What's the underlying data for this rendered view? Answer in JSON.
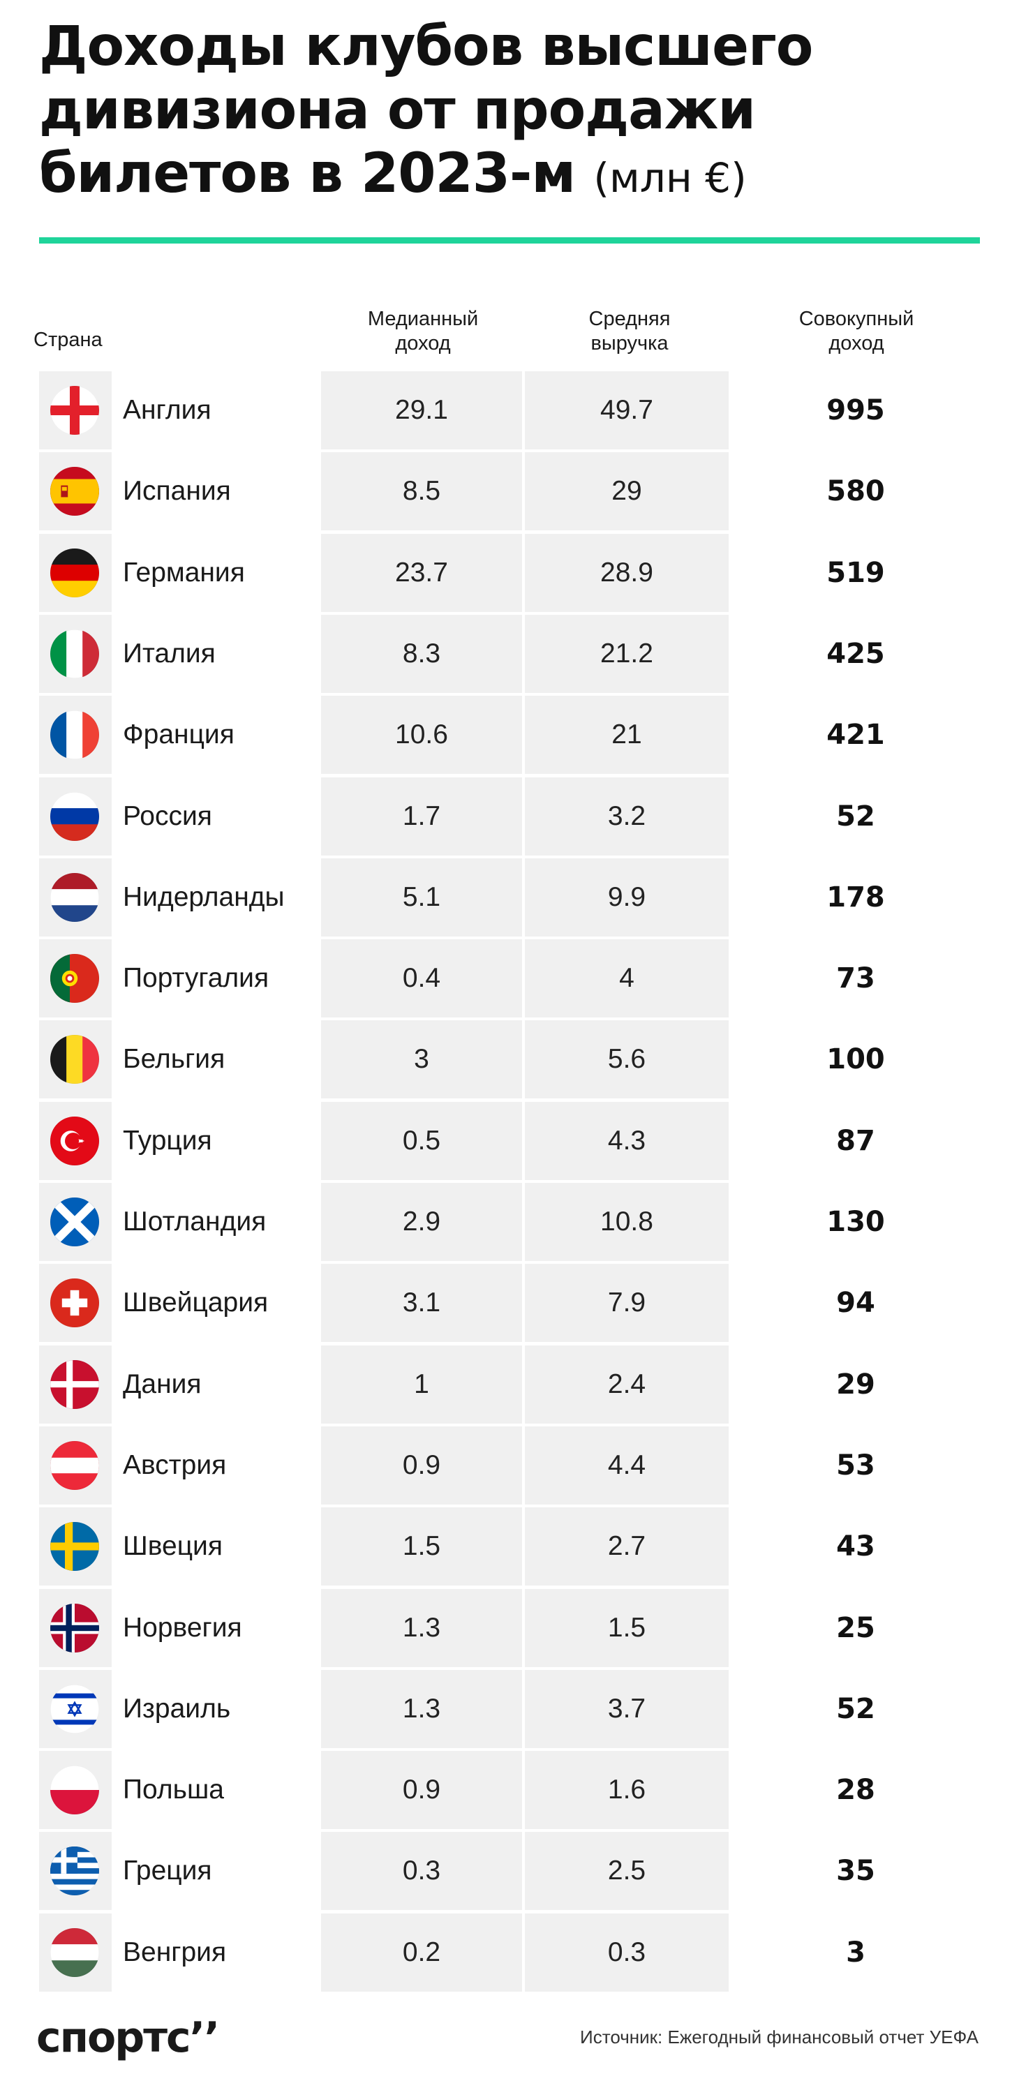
{
  "title": {
    "main": "Доходы клубов высшего дивизиона от продажи билетов в 2023-м",
    "unit": "(млн €)"
  },
  "colors": {
    "accent": "#1fd49a",
    "row_shade": "#f0f0f0",
    "logo_dark": "#1a1a1a"
  },
  "chart_data": {
    "type": "table",
    "title": "Доходы клубов высшего дивизиона от продажи билетов в 2023-м (млн €)",
    "columns": [
      "Страна",
      "Медианный\nдоход",
      "Средняя\nвыручка",
      "Совокупный\nдоход"
    ],
    "rows": [
      {
        "country": "Англия",
        "flag": "england-flag",
        "median": "29.1",
        "average": "49.7",
        "total": "995"
      },
      {
        "country": "Испания",
        "flag": "spain-flag",
        "median": "8.5",
        "average": "29",
        "total": "580"
      },
      {
        "country": "Германия",
        "flag": "germany-flag",
        "median": "23.7",
        "average": "28.9",
        "total": "519"
      },
      {
        "country": "Италия",
        "flag": "italy-flag",
        "median": "8.3",
        "average": "21.2",
        "total": "425"
      },
      {
        "country": "Франция",
        "flag": "france-flag",
        "median": "10.6",
        "average": "21",
        "total": "421"
      },
      {
        "country": "Россия",
        "flag": "russia-flag",
        "median": "1.7",
        "average": "3.2",
        "total": "52"
      },
      {
        "country": "Нидерланды",
        "flag": "netherlands-flag",
        "median": "5.1",
        "average": "9.9",
        "total": "178"
      },
      {
        "country": "Португалия",
        "flag": "portugal-flag",
        "median": "0.4",
        "average": "4",
        "total": "73"
      },
      {
        "country": "Бельгия",
        "flag": "belgium-flag",
        "median": "3",
        "average": "5.6",
        "total": "100"
      },
      {
        "country": "Турция",
        "flag": "turkey-flag",
        "median": "0.5",
        "average": "4.3",
        "total": "87"
      },
      {
        "country": "Шотландия",
        "flag": "scotland-flag",
        "median": "2.9",
        "average": "10.8",
        "total": "130"
      },
      {
        "country": "Швейцария",
        "flag": "switzerland-flag",
        "median": "3.1",
        "average": "7.9",
        "total": "94"
      },
      {
        "country": "Дания",
        "flag": "denmark-flag",
        "median": "1",
        "average": "2.4",
        "total": "29"
      },
      {
        "country": "Австрия",
        "flag": "austria-flag",
        "median": "0.9",
        "average": "4.4",
        "total": "53"
      },
      {
        "country": "Швеция",
        "flag": "sweden-flag",
        "median": "1.5",
        "average": "2.7",
        "total": "43"
      },
      {
        "country": "Норвегия",
        "flag": "norway-flag",
        "median": "1.3",
        "average": "1.5",
        "total": "25"
      },
      {
        "country": "Израиль",
        "flag": "israel-flag",
        "median": "1.3",
        "average": "3.7",
        "total": "52"
      },
      {
        "country": "Польша",
        "flag": "poland-flag",
        "median": "0.9",
        "average": "1.6",
        "total": "28"
      },
      {
        "country": "Греция",
        "flag": "greece-flag",
        "median": "0.3",
        "average": "2.5",
        "total": "35"
      },
      {
        "country": "Венгрия",
        "flag": "hungary-flag",
        "median": "0.2",
        "average": "0.3",
        "total": "3"
      }
    ]
  },
  "footer": {
    "logo": "спортс’’",
    "source": "Источник: Ежегодный финансовый отчет УЕФА"
  }
}
